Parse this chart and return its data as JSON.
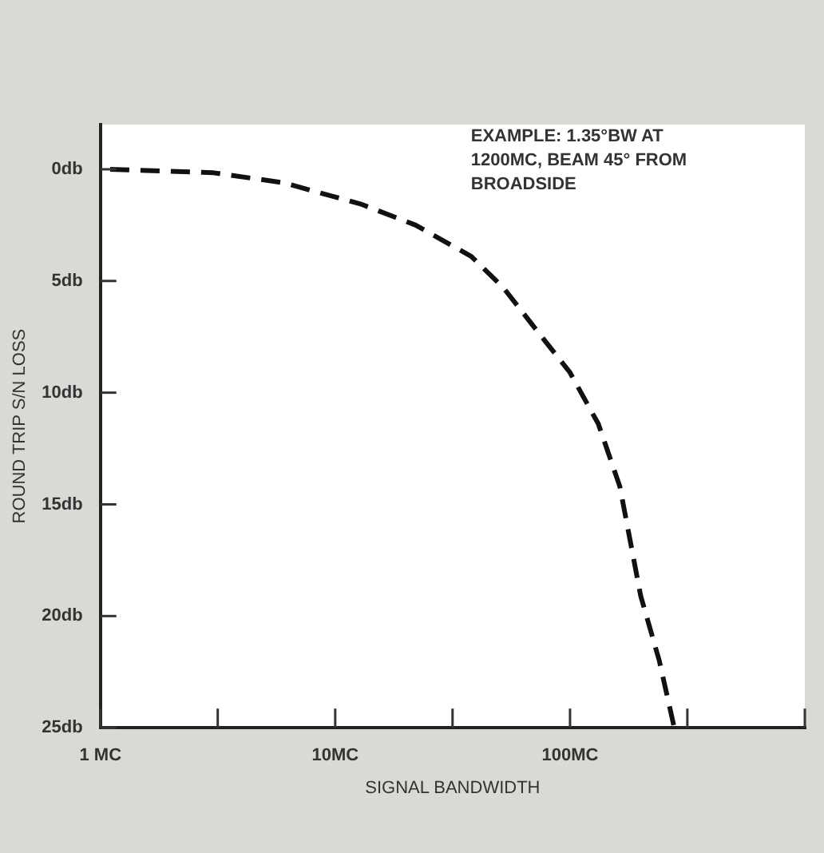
{
  "chart_data": {
    "type": "line",
    "xlabel": "SIGNAL BANDWIDTH",
    "ylabel": "ROUND TRIP S/N LOSS",
    "annotations": [
      "EXAMPLE: 1.35°BW AT\n1200MC, BEAM 45° FROM\nBROADSIDE"
    ],
    "series": [
      {
        "color": "#111111",
        "x": [
          1.1,
          3,
          6,
          12.8,
          22,
          38,
          52,
          72,
          100,
          132,
          163,
          200,
          240,
          278
        ],
        "values": [
          0,
          0.15,
          0.6,
          1.55,
          2.5,
          3.9,
          5.3,
          7.2,
          9.1,
          11.4,
          14.2,
          19.1,
          22,
          25
        ]
      }
    ],
    "log": "x",
    "xlim": [
      1,
      1000
    ],
    "xticks": [
      {
        "value": 1,
        "label": "1 MC"
      },
      {
        "value": 3.16,
        "label": null
      },
      {
        "value": 10,
        "label": "10MC"
      },
      {
        "value": 31.6,
        "label": null
      },
      {
        "value": 100,
        "label": "100MC"
      },
      {
        "value": 316,
        "label": null
      },
      {
        "value": 1000,
        "label": null
      }
    ],
    "ylim": [
      25,
      -2
    ],
    "yticks": [
      {
        "value": 0,
        "label": "0db"
      },
      {
        "value": 5,
        "label": "5db"
      },
      {
        "value": 10,
        "label": "10db"
      },
      {
        "value": 15,
        "label": "15db"
      },
      {
        "value": 20,
        "label": "20db"
      },
      {
        "value": 25,
        "label": "25db"
      }
    ],
    "grid": false,
    "legend": false,
    "marker": "none",
    "line_style": "dashed"
  }
}
